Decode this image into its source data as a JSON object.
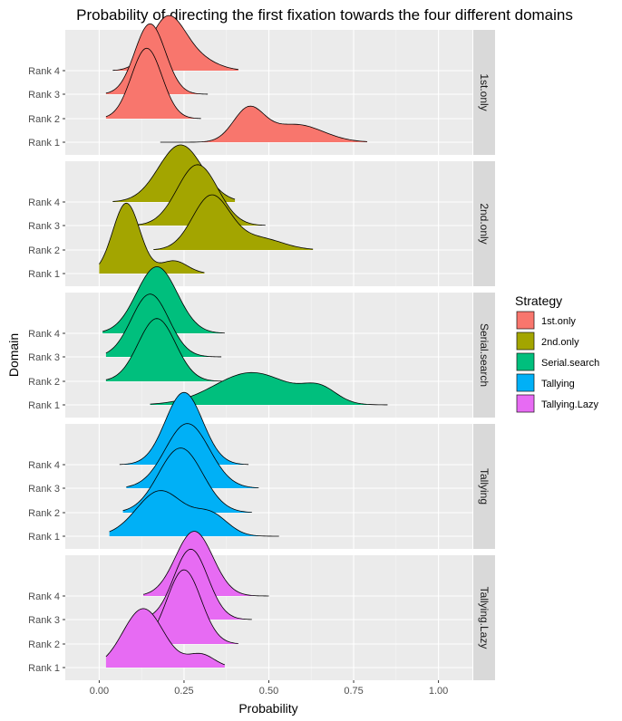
{
  "chart_data": {
    "type": "ridgeline",
    "title": "Probability of directing the first fixation towards the four different domains",
    "xlabel": "Probability",
    "ylabel": "Domain",
    "xlim": [
      -0.1,
      1.1
    ],
    "xticks": [
      0.0,
      0.25,
      0.5,
      0.75,
      1.0
    ],
    "xtick_labels": [
      "0.00",
      "0.25",
      "0.50",
      "0.75",
      "1.00"
    ],
    "categories": [
      "Rank 1",
      "Rank 2",
      "Rank 3",
      "Rank 4"
    ],
    "legend": {
      "title": "Strategy",
      "position": "right",
      "items": [
        {
          "label": "1st.only",
          "color": "#F8766D"
        },
        {
          "label": "2nd.only",
          "color": "#A3A500"
        },
        {
          "label": "Serial.search",
          "color": "#00BF7D"
        },
        {
          "label": "Tallying",
          "color": "#00B0F6"
        },
        {
          "label": "Tallying.Lazy",
          "color": "#E76BF3"
        }
      ]
    },
    "panels": [
      {
        "strategy": "1st.only",
        "color": "#F8766D",
        "ridges": [
          {
            "rank": "Rank 1",
            "min": 0.18,
            "max": 0.79,
            "peaks": [
              [
                0.44,
                0.045,
                1.0
              ],
              [
                0.58,
                0.08,
                0.55
              ]
            ],
            "height": 0.95
          },
          {
            "rank": "Rank 2",
            "min": 0.02,
            "max": 0.3,
            "peaks": [
              [
                0.14,
                0.045,
                1.0
              ]
            ],
            "height": 1.85
          },
          {
            "rank": "Rank 3",
            "min": 0.02,
            "max": 0.32,
            "peaks": [
              [
                0.15,
                0.045,
                1.0
              ]
            ],
            "height": 1.85
          },
          {
            "rank": "Rank 4",
            "min": 0.04,
            "max": 0.41,
            "peaks": [
              [
                0.2,
                0.05,
                1.0
              ],
              [
                0.28,
                0.06,
                0.25
              ]
            ],
            "height": 1.45
          }
        ]
      },
      {
        "strategy": "2nd.only",
        "color": "#A3A500",
        "ridges": [
          {
            "rank": "Rank 1",
            "min": 0.0,
            "max": 0.31,
            "peaks": [
              [
                0.08,
                0.04,
                1.0
              ],
              [
                0.22,
                0.04,
                0.18
              ]
            ],
            "height": 1.85
          },
          {
            "rank": "Rank 2",
            "min": 0.16,
            "max": 0.63,
            "peaks": [
              [
                0.33,
                0.055,
                1.0
              ],
              [
                0.47,
                0.07,
                0.22
              ]
            ],
            "height": 1.45
          },
          {
            "rank": "Rank 3",
            "min": 0.11,
            "max": 0.49,
            "peaks": [
              [
                0.29,
                0.06,
                1.0
              ]
            ],
            "height": 1.6
          },
          {
            "rank": "Rank 4",
            "min": 0.04,
            "max": 0.4,
            "peaks": [
              [
                0.24,
                0.065,
                1.0
              ]
            ],
            "height": 1.5
          }
        ]
      },
      {
        "strategy": "Serial.search",
        "color": "#00BF7D",
        "ridges": [
          {
            "rank": "Rank 1",
            "min": 0.15,
            "max": 0.85,
            "peaks": [
              [
                0.45,
                0.11,
                1.0
              ],
              [
                0.65,
                0.05,
                0.45
              ]
            ],
            "height": 0.85
          },
          {
            "rank": "Rank 2",
            "min": 0.02,
            "max": 0.37,
            "peaks": [
              [
                0.17,
                0.055,
                1.0
              ]
            ],
            "height": 1.65
          },
          {
            "rank": "Rank 3",
            "min": 0.02,
            "max": 0.36,
            "peaks": [
              [
                0.15,
                0.055,
                1.0
              ]
            ],
            "height": 1.65
          },
          {
            "rank": "Rank 4",
            "min": 0.01,
            "max": 0.37,
            "peaks": [
              [
                0.17,
                0.06,
                1.0
              ]
            ],
            "height": 1.75
          }
        ]
      },
      {
        "strategy": "Tallying",
        "color": "#00B0F6",
        "ridges": [
          {
            "rank": "Rank 1",
            "min": 0.03,
            "max": 0.53,
            "peaks": [
              [
                0.18,
                0.07,
                1.0
              ],
              [
                0.33,
                0.05,
                0.45
              ]
            ],
            "height": 1.2
          },
          {
            "rank": "Rank 2",
            "min": 0.07,
            "max": 0.45,
            "peaks": [
              [
                0.24,
                0.065,
                1.0
              ]
            ],
            "height": 1.7
          },
          {
            "rank": "Rank 3",
            "min": 0.08,
            "max": 0.47,
            "peaks": [
              [
                0.26,
                0.065,
                1.0
              ]
            ],
            "height": 1.7
          },
          {
            "rank": "Rank 4",
            "min": 0.06,
            "max": 0.44,
            "peaks": [
              [
                0.25,
                0.055,
                1.0
              ]
            ],
            "height": 1.9
          }
        ]
      },
      {
        "strategy": "Tallying.Lazy",
        "color": "#E76BF3",
        "ridges": [
          {
            "rank": "Rank 1",
            "min": 0.02,
            "max": 0.37,
            "peaks": [
              [
                0.13,
                0.06,
                1.0
              ],
              [
                0.3,
                0.04,
                0.22
              ]
            ],
            "height": 1.55
          },
          {
            "rank": "Rank 2",
            "min": 0.15,
            "max": 0.41,
            "peaks": [
              [
                0.25,
                0.05,
                1.0
              ]
            ],
            "height": 1.95
          },
          {
            "rank": "Rank 3",
            "min": 0.13,
            "max": 0.45,
            "peaks": [
              [
                0.27,
                0.05,
                1.0
              ]
            ],
            "height": 1.85
          },
          {
            "rank": "Rank 4",
            "min": 0.13,
            "max": 0.5,
            "peaks": [
              [
                0.28,
                0.055,
                1.0
              ]
            ],
            "height": 1.7
          }
        ]
      }
    ]
  }
}
